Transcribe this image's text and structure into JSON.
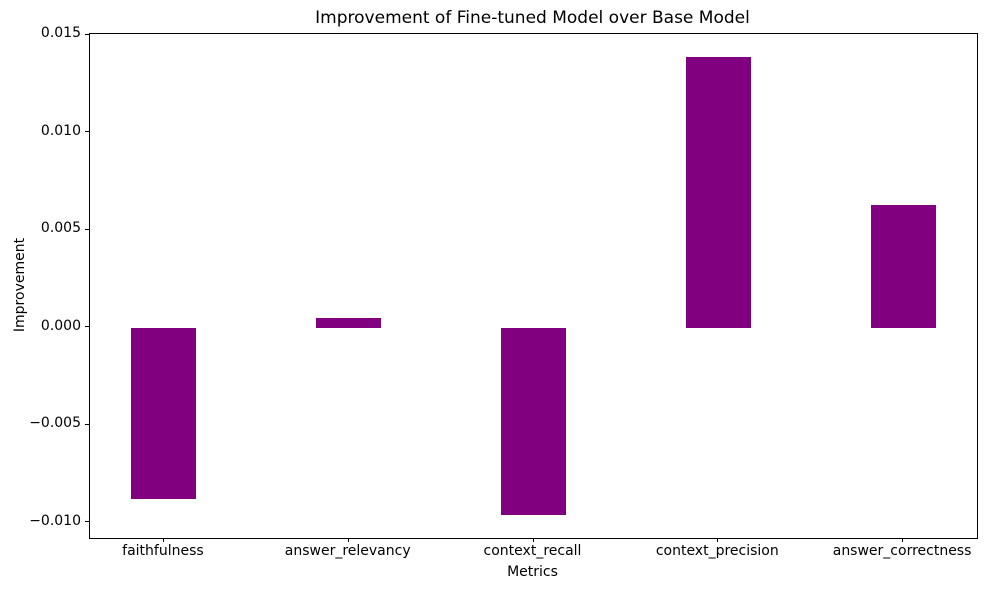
{
  "chart_data": {
    "type": "bar",
    "title": "Improvement of Fine-tuned Model over Base Model",
    "xlabel": "Metrics",
    "ylabel": "Improvement",
    "categories": [
      "faithfulness",
      "answer_relevancy",
      "context_recall",
      "context_precision",
      "answer_correctness"
    ],
    "values": [
      -0.0088,
      0.0005,
      -0.0096,
      0.0139,
      0.0063
    ],
    "bar_color": "#800080",
    "ylim": [
      -0.010775,
      0.015075
    ],
    "yticks": [
      0.015,
      0.01,
      0.005,
      0.0,
      -0.005,
      -0.01
    ],
    "ytick_labels": [
      "0.015",
      "0.010",
      "0.005",
      "0.000",
      "−0.005",
      "−0.010"
    ],
    "grid": false,
    "legend_position": "none",
    "frame": "full-box"
  }
}
